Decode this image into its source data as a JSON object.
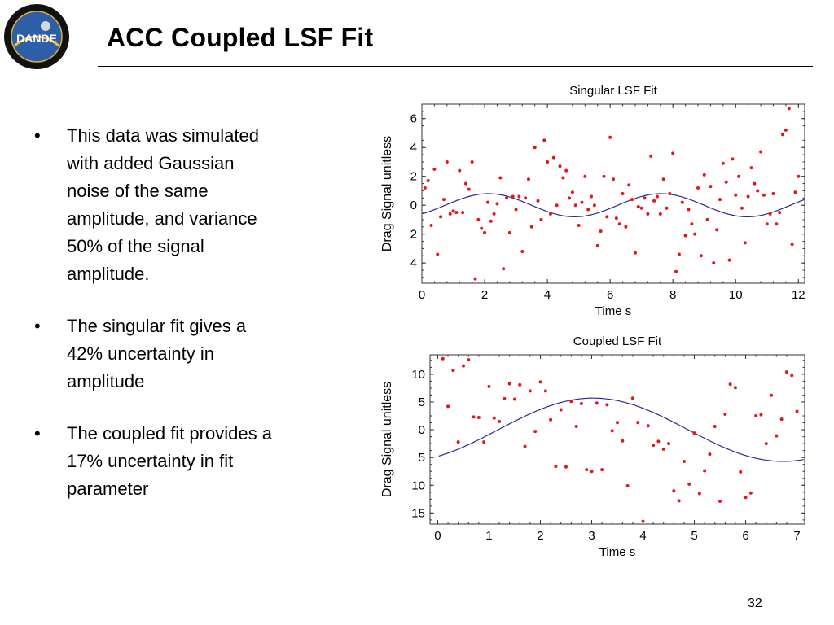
{
  "slide": {
    "title": "ACC Coupled LSF Fit",
    "page_number": "32",
    "logo": {
      "icon": "dande-mission-logo",
      "text": "DANDE"
    },
    "bullets": [
      {
        "marker": "•",
        "text": "This data was simulated\nwith added Gaussian\nnoise of the same\namplitude, and variance\n50% of the signal\namplitude."
      },
      {
        "marker": "•",
        "text": "The singular fit gives a\n42% uncertainty in\namplitude"
      },
      {
        "marker": "•",
        "text": "The coupled fit provides a\n17% uncertainty in fit\nparameter"
      }
    ]
  },
  "chart_data": [
    {
      "type": "scatter",
      "title": "Singular  LSF Fit",
      "xlabel": "Time \u0002s\u0003",
      "ylabel": "Drag Signal \u0002unitless\u0003",
      "xlim": [
        0,
        12.2
      ],
      "ylim": [
        -5.4,
        7
      ],
      "xticks": [
        "0",
        "2",
        "4",
        "6",
        "8",
        "10",
        "12"
      ],
      "yticks": [
        {
          "v": 6,
          "label": "6"
        },
        {
          "v": 4,
          "label": "4"
        },
        {
          "v": 2,
          "label": "2"
        },
        {
          "v": 0,
          "label": "0"
        },
        {
          "v": -2,
          "label": "\u0003 2"
        },
        {
          "v": -4,
          "label": "\u0003 4"
        }
      ],
      "point_color": "#e8141b",
      "line_color": "#2b2b8f",
      "fit": {
        "amplitude": 0.8,
        "period": 5.5,
        "phase": 0.85,
        "offset": 0
      },
      "points": [
        [
          0.1,
          1.2
        ],
        [
          0.2,
          1.7
        ],
        [
          0.3,
          -1.4
        ],
        [
          0.4,
          2.5
        ],
        [
          0.5,
          -3.4
        ],
        [
          0.6,
          -0.8
        ],
        [
          0.7,
          0.4
        ],
        [
          0.8,
          3
        ],
        [
          0.9,
          -0.6
        ],
        [
          1.0,
          -0.4
        ],
        [
          1.1,
          -0.5
        ],
        [
          1.2,
          2.4
        ],
        [
          1.3,
          -0.5
        ],
        [
          1.4,
          1.5
        ],
        [
          1.5,
          1.1
        ],
        [
          1.6,
          3
        ],
        [
          1.7,
          -5.1
        ],
        [
          1.8,
          -1
        ],
        [
          1.9,
          -1.6
        ],
        [
          2.0,
          -1.9
        ],
        [
          2.1,
          0.2
        ],
        [
          2.2,
          -1.1
        ],
        [
          2.3,
          -0.6
        ],
        [
          2.4,
          0.1
        ],
        [
          2.5,
          1.9
        ],
        [
          2.6,
          -4.4
        ],
        [
          2.7,
          0.5
        ],
        [
          2.8,
          -1.9
        ],
        [
          2.9,
          0.6
        ],
        [
          3.0,
          -0.3
        ],
        [
          3.1,
          0.6
        ],
        [
          3.2,
          -3.2
        ],
        [
          3.3,
          0.5
        ],
        [
          3.4,
          1.8
        ],
        [
          3.5,
          -1.5
        ],
        [
          3.6,
          4
        ],
        [
          3.7,
          0.3
        ],
        [
          3.8,
          -1
        ],
        [
          3.9,
          4.5
        ],
        [
          4.0,
          3
        ],
        [
          4.1,
          -0.6
        ],
        [
          4.2,
          3.3
        ],
        [
          4.3,
          0
        ],
        [
          4.4,
          2.7
        ],
        [
          4.5,
          1.9
        ],
        [
          4.6,
          2.4
        ],
        [
          4.7,
          0.5
        ],
        [
          4.8,
          0.9
        ],
        [
          4.9,
          0
        ],
        [
          5.0,
          -1.4
        ],
        [
          5.1,
          0.2
        ],
        [
          5.2,
          2
        ],
        [
          5.3,
          -0.3
        ],
        [
          5.4,
          0.6
        ],
        [
          5.5,
          0
        ],
        [
          5.6,
          -2.8
        ],
        [
          5.7,
          -1.8
        ],
        [
          5.8,
          2
        ],
        [
          5.9,
          -0.8
        ],
        [
          6.0,
          4.7
        ],
        [
          6.1,
          1.8
        ],
        [
          6.2,
          -0.9
        ],
        [
          6.3,
          -1.3
        ],
        [
          6.4,
          0.8
        ],
        [
          6.5,
          -1.5
        ],
        [
          6.6,
          1.4
        ],
        [
          6.7,
          0.4
        ],
        [
          6.8,
          -3.3
        ],
        [
          6.9,
          -0.1
        ],
        [
          7.0,
          -0.2
        ],
        [
          7.1,
          0.5
        ],
        [
          7.2,
          -0.6
        ],
        [
          7.3,
          3.4
        ],
        [
          7.4,
          0.3
        ],
        [
          7.5,
          0.6
        ],
        [
          7.6,
          -0.6
        ],
        [
          7.7,
          1.8
        ],
        [
          7.8,
          -0.2
        ],
        [
          7.9,
          0.8
        ],
        [
          8.0,
          3.6
        ],
        [
          8.1,
          -4.6
        ],
        [
          8.2,
          -3.4
        ],
        [
          8.3,
          0.2
        ],
        [
          8.4,
          -2.1
        ],
        [
          8.5,
          -0.3
        ],
        [
          8.6,
          -1.3
        ],
        [
          8.7,
          -2
        ],
        [
          8.8,
          1.2
        ],
        [
          8.9,
          -3.5
        ],
        [
          9.0,
          2.1
        ],
        [
          9.1,
          -1
        ],
        [
          9.2,
          1.3
        ],
        [
          9.3,
          -4
        ],
        [
          9.4,
          -1.7
        ],
        [
          9.5,
          0.4
        ],
        [
          9.6,
          2.9
        ],
        [
          9.7,
          1.6
        ],
        [
          9.8,
          -3.8
        ],
        [
          9.9,
          3.2
        ],
        [
          10.0,
          0.7
        ],
        [
          10.1,
          2
        ],
        [
          10.2,
          -0.2
        ],
        [
          10.3,
          -2.6
        ],
        [
          10.4,
          0.6
        ],
        [
          10.5,
          2.6
        ],
        [
          10.6,
          1.5
        ],
        [
          10.7,
          1
        ],
        [
          10.8,
          3.7
        ],
        [
          10.9,
          0.7
        ],
        [
          11.0,
          -1.3
        ],
        [
          11.1,
          -0.6
        ],
        [
          11.2,
          0.8
        ],
        [
          11.3,
          -1.3
        ],
        [
          11.4,
          -0.5
        ],
        [
          11.5,
          4.9
        ],
        [
          11.6,
          5.2
        ],
        [
          11.7,
          6.7
        ],
        [
          11.8,
          -2.7
        ],
        [
          11.9,
          0.9
        ],
        [
          12.0,
          2
        ]
      ]
    },
    {
      "type": "scatter",
      "title": "Coupled LSF Fit",
      "xlabel": "Time \u0002s\u0003",
      "ylabel": "Drag Signal \u0002unitless\u0003",
      "xlim": [
        -0.15,
        7.15
      ],
      "ylim": [
        -17,
        13.5
      ],
      "xticks": [
        "0",
        "1",
        "2",
        "3",
        "4",
        "5",
        "6",
        "7"
      ],
      "yticks": [
        {
          "v": 10,
          "label": "10"
        },
        {
          "v": 5,
          "label": "5"
        },
        {
          "v": 0,
          "label": "0"
        },
        {
          "v": -5,
          "label": "\u0003 5"
        },
        {
          "v": -10,
          "label": "\u0003 10"
        },
        {
          "v": -15,
          "label": "\u0003 15"
        }
      ],
      "point_color": "#e8141b",
      "line_color": "#2b2b8f",
      "fit": {
        "amplitude": 5.7,
        "period": 7.4,
        "phase": 1.0,
        "offset": 0
      },
      "points": [
        [
          0.1,
          12.8
        ],
        [
          0.2,
          4.2
        ],
        [
          0.3,
          10.7
        ],
        [
          0.4,
          -2.2
        ],
        [
          0.5,
          11.5
        ],
        [
          0.6,
          12.6
        ],
        [
          0.7,
          2.3
        ],
        [
          0.8,
          2.2
        ],
        [
          0.9,
          -2.2
        ],
        [
          1.0,
          7.8
        ],
        [
          1.1,
          2.1
        ],
        [
          1.2,
          1.5
        ],
        [
          1.3,
          5.6
        ],
        [
          1.4,
          8.3
        ],
        [
          1.5,
          5.5
        ],
        [
          1.6,
          8.1
        ],
        [
          1.7,
          -3
        ],
        [
          1.8,
          7
        ],
        [
          1.9,
          -0.3
        ],
        [
          2.0,
          8.6
        ],
        [
          2.1,
          7
        ],
        [
          2.2,
          1.8
        ],
        [
          2.3,
          -6.6
        ],
        [
          2.4,
          3.6
        ],
        [
          2.5,
          -6.7
        ],
        [
          2.6,
          5.1
        ],
        [
          2.7,
          0.6
        ],
        [
          2.8,
          4.7
        ],
        [
          2.9,
          -7.2
        ],
        [
          3.0,
          -7.5
        ],
        [
          3.1,
          4.8
        ],
        [
          3.2,
          -7.2
        ],
        [
          3.3,
          4.5
        ],
        [
          3.4,
          -0.2
        ],
        [
          3.5,
          1.3
        ],
        [
          3.6,
          -2
        ],
        [
          3.7,
          -10.1
        ],
        [
          3.8,
          5.7
        ],
        [
          3.9,
          1.3
        ],
        [
          4.0,
          -16.5
        ],
        [
          4.1,
          0.7
        ],
        [
          4.2,
          -2.8
        ],
        [
          4.3,
          -2.1
        ],
        [
          4.4,
          -3.5
        ],
        [
          4.5,
          -2.5
        ],
        [
          4.6,
          -11
        ],
        [
          4.7,
          -12.8
        ],
        [
          4.8,
          -5.7
        ],
        [
          4.9,
          -9.8
        ],
        [
          5.0,
          -0.6
        ],
        [
          5.1,
          -11.5
        ],
        [
          5.2,
          -7.4
        ],
        [
          5.3,
          -4.4
        ],
        [
          5.4,
          0.6
        ],
        [
          5.5,
          -12.9
        ],
        [
          5.6,
          2.8
        ],
        [
          5.7,
          8.2
        ],
        [
          5.8,
          7.6
        ],
        [
          5.9,
          -7.6
        ],
        [
          6.0,
          -12.2
        ],
        [
          6.1,
          -11.4
        ],
        [
          6.2,
          2.5
        ],
        [
          6.3,
          2.7
        ],
        [
          6.4,
          -2.5
        ],
        [
          6.5,
          6.2
        ],
        [
          6.6,
          -1.1
        ],
        [
          6.7,
          1.9
        ],
        [
          6.8,
          10.4
        ],
        [
          6.9,
          9.8
        ],
        [
          7.0,
          3.3
        ]
      ]
    }
  ]
}
